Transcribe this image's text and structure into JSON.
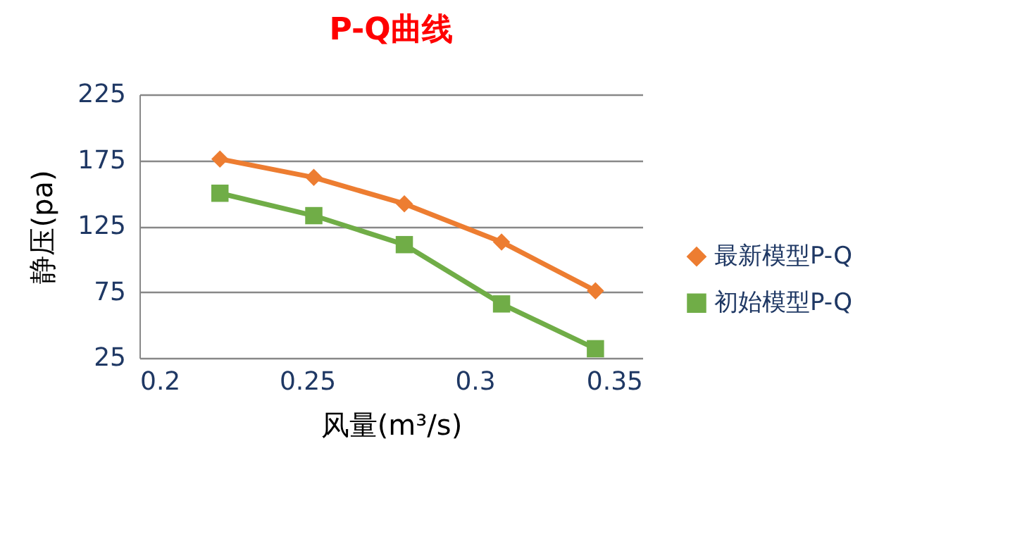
{
  "chart_data": {
    "type": "line",
    "title": "P-Q曲线",
    "xlabel": "风量(m³/s)",
    "ylabel": "静压(pa)",
    "xlim": [
      0.2,
      0.35
    ],
    "xticks": [
      0.2,
      0.25,
      0.3,
      0.35
    ],
    "ylim": [
      25,
      225
    ],
    "yticks": [
      25,
      75,
      125,
      175,
      225
    ],
    "grid": "y",
    "legend": "right",
    "series": [
      {
        "name": "最新模型P-Q",
        "color": "#ed7d31",
        "marker": "diamond",
        "x": [
          0.224,
          0.252,
          0.279,
          0.308,
          0.336
        ],
        "values": [
          176,
          162,
          142,
          113,
          76
        ]
      },
      {
        "name": "初始模型P-Q",
        "color": "#70ad47",
        "marker": "square",
        "x": [
          0.224,
          0.252,
          0.279,
          0.308,
          0.336
        ],
        "values": [
          150,
          133,
          111,
          66,
          32
        ]
      }
    ]
  }
}
